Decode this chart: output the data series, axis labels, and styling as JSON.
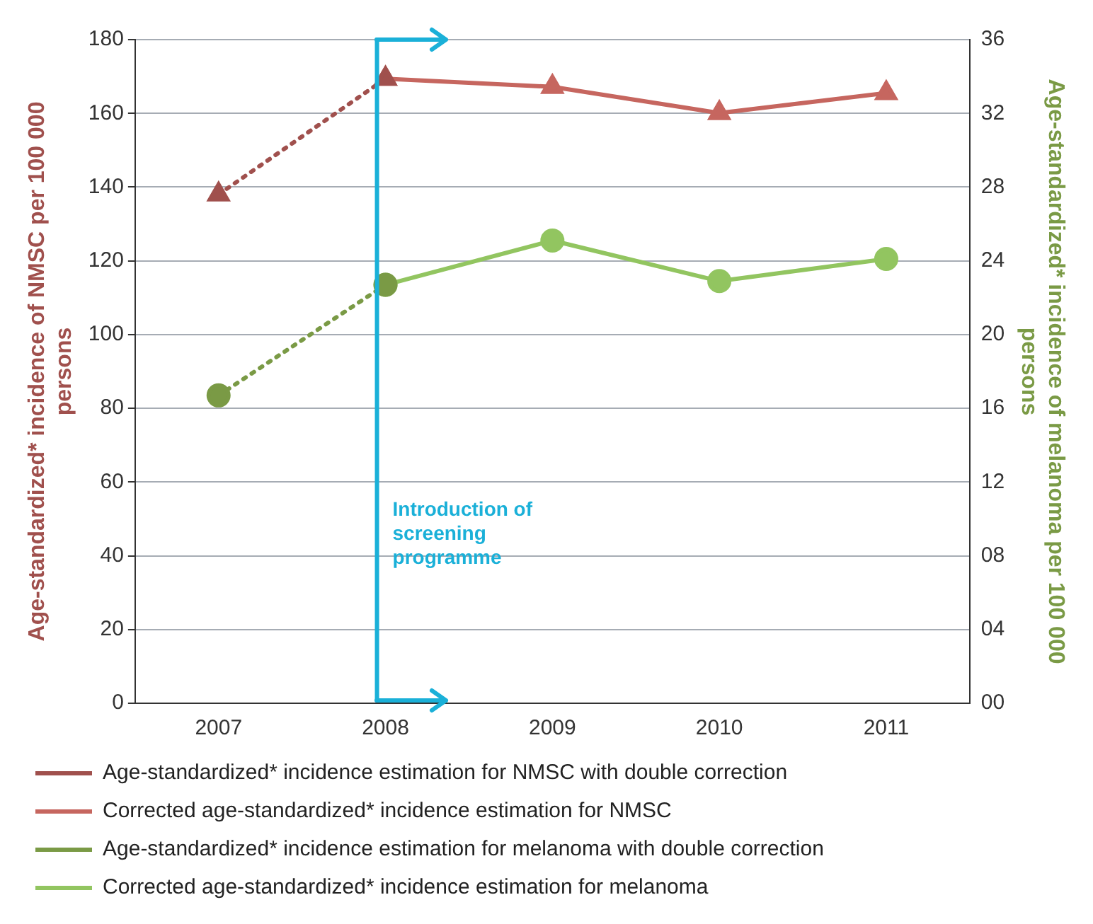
{
  "chart_data": {
    "type": "line",
    "categories": [
      "2007",
      "2008",
      "2009",
      "2010",
      "2011"
    ],
    "ylabel": "Age-standardized* incidence of NMSC per 100 000 persons",
    "y2label": "Age-standardized* incidence of melanoma per 100 000 persons",
    "ylim": [
      0,
      180
    ],
    "yticks": [
      0,
      20,
      40,
      60,
      80,
      100,
      120,
      140,
      160,
      180
    ],
    "y2lim": [
      0,
      36
    ],
    "y2ticks": [
      {
        "value": 0,
        "label": "00"
      },
      {
        "value": 4,
        "label": "04"
      },
      {
        "value": 8,
        "label": "08"
      },
      12,
      16,
      20,
      24,
      28,
      32,
      36
    ],
    "grid": "y",
    "legend": "bottom",
    "ref_lines": [
      {
        "axis": "x",
        "value": "2008",
        "label": "Introduction of screening programme",
        "color": "#1ab0d8"
      }
    ],
    "series": [
      {
        "name": "Age-standardized* incidence estimation for NMSC with double correction",
        "color": "#a0504d",
        "marker": "triangle",
        "line_style": "dotted",
        "values": [
          138,
          169.4,
          null,
          null,
          null
        ]
      },
      {
        "name": "Corrected age-standardized* incidence estimation for NMSC",
        "color": "#c6665f",
        "marker": "triangle",
        "line_style": "solid",
        "values": [
          null,
          169.4,
          167.2,
          160.1,
          165.5
        ]
      },
      {
        "name": "Age-standardized* incidence estimation for melanoma with double correction",
        "color": "#7a9a45",
        "marker": "circle",
        "line_style": "dotted",
        "axis": "y2",
        "values": [
          16.7,
          22.7,
          null,
          null,
          null
        ]
      },
      {
        "name": "Corrected age-standardized* incidence estimation for melanoma",
        "color": "#92c560",
        "marker": "circle",
        "line_style": "solid",
        "axis": "y2",
        "values": [
          null,
          22.7,
          25.1,
          22.9,
          24.1
        ]
      }
    ]
  }
}
